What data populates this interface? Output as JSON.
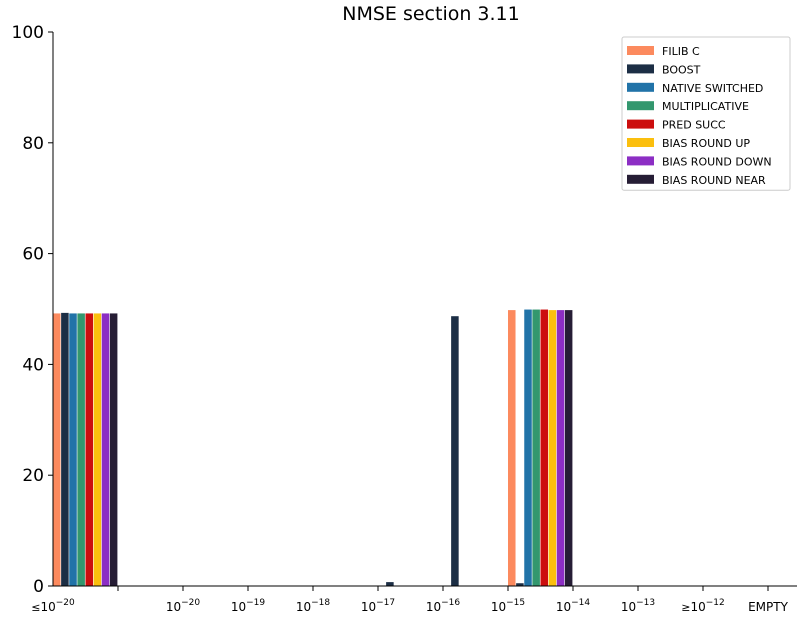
{
  "chart_data": {
    "type": "bar",
    "title": "NMSE section 3.11",
    "xlabel": "",
    "ylabel": "",
    "ylim": [
      0,
      100
    ],
    "yticks": [
      0,
      20,
      40,
      60,
      80,
      100
    ],
    "grid": false,
    "legend_position": "top-right",
    "categories": [
      {
        "prefix": "≤",
        "base": "10",
        "exp": "−20"
      },
      {
        "prefix": "",
        "base": "10",
        "exp": "−20"
      },
      {
        "prefix": "",
        "base": "10",
        "exp": "−19"
      },
      {
        "prefix": "",
        "base": "10",
        "exp": "−18"
      },
      {
        "prefix": "",
        "base": "10",
        "exp": "−17"
      },
      {
        "prefix": "",
        "base": "10",
        "exp": "−16"
      },
      {
        "prefix": "",
        "base": "10",
        "exp": "−15"
      },
      {
        "prefix": "",
        "base": "10",
        "exp": "−14"
      },
      {
        "prefix": "",
        "base": "10",
        "exp": "−13"
      },
      {
        "prefix": "≥",
        "base": "10",
        "exp": "−12"
      },
      {
        "prefix": "",
        "base": "EMPTY",
        "exp": ""
      }
    ],
    "series": [
      {
        "name": "FILIB C",
        "color": "#fc8a5e",
        "values": [
          49.2,
          0,
          0,
          0,
          0,
          0,
          0,
          49.8,
          0,
          0,
          0
        ]
      },
      {
        "name": "BOOST",
        "color": "#1c2e45",
        "values": [
          49.3,
          0,
          0,
          0,
          0,
          0.7,
          48.7,
          0.5,
          0,
          0,
          0
        ]
      },
      {
        "name": "NATIVE SWITCHED",
        "color": "#2173a8",
        "values": [
          49.2,
          0,
          0,
          0,
          0,
          0,
          0,
          49.9,
          0,
          0,
          0
        ]
      },
      {
        "name": "MULTIPLICATIVE",
        "color": "#33976e",
        "values": [
          49.2,
          0,
          0,
          0,
          0,
          0,
          0,
          49.9,
          0,
          0,
          0
        ]
      },
      {
        "name": "PRED SUCC",
        "color": "#cc0e0e",
        "values": [
          49.2,
          0,
          0,
          0,
          0,
          0,
          0,
          49.9,
          0,
          0,
          0
        ]
      },
      {
        "name": "BIAS ROUND UP",
        "color": "#fbbf0e",
        "values": [
          49.2,
          0,
          0,
          0,
          0,
          0,
          0,
          49.8,
          0,
          0,
          0
        ]
      },
      {
        "name": "BIAS ROUND DOWN",
        "color": "#8c2ec4",
        "values": [
          49.2,
          0,
          0,
          0,
          0,
          0,
          0,
          49.8,
          0,
          0,
          0
        ]
      },
      {
        "name": "BIAS ROUND NEAR",
        "color": "#261d35",
        "values": [
          49.2,
          0,
          0,
          0,
          0,
          0,
          0,
          49.8,
          0,
          0,
          0
        ]
      }
    ]
  }
}
